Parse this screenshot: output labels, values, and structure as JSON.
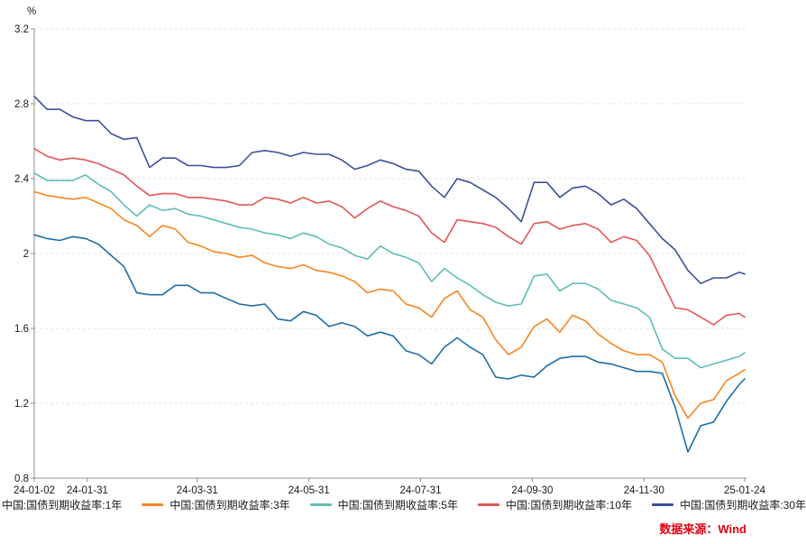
{
  "chart": {
    "unit_label": "%",
    "source": "数据来源：Wind",
    "source_color": "#e60012",
    "axis_color": "#8f8f8f",
    "grid_color": "#e3e3e3",
    "tick_text_color": "#1a1a1a"
  },
  "chart_data": {
    "type": "line",
    "title": "",
    "xlabel": "",
    "ylabel": "%",
    "ylim": [
      0.8,
      3.2
    ],
    "y_ticks": [
      3.2,
      2.8,
      2.4,
      2,
      1.6,
      1.2,
      0.8
    ],
    "grid": "horizontal-dashed",
    "legend_position": "bottom",
    "x_unit": "days since 2024-01-02",
    "x_tick_days": [
      0,
      29,
      89,
      150,
      211,
      272,
      333,
      388
    ],
    "x_tick_labels": [
      "24-01-02",
      "24-01-31",
      "24-03-31",
      "24-05-31",
      "24-07-31",
      "24-09-30",
      "24-11-30",
      "25-01-24"
    ],
    "x_days": [
      0,
      7,
      14,
      21,
      28,
      35,
      42,
      49,
      56,
      63,
      70,
      77,
      84,
      91,
      98,
      105,
      112,
      119,
      126,
      133,
      140,
      147,
      154,
      161,
      168,
      175,
      182,
      189,
      196,
      203,
      210,
      217,
      224,
      231,
      238,
      245,
      252,
      259,
      266,
      273,
      280,
      287,
      294,
      301,
      308,
      315,
      322,
      329,
      336,
      343,
      350,
      357,
      364,
      371,
      378,
      385,
      388
    ],
    "series": [
      {
        "name": "中国:国债到期收益率:1年",
        "color": "#1f6fa8",
        "values": [
          2.1,
          2.08,
          2.07,
          2.09,
          2.08,
          2.05,
          1.99,
          1.93,
          1.79,
          1.78,
          1.78,
          1.83,
          1.83,
          1.79,
          1.79,
          1.76,
          1.73,
          1.72,
          1.73,
          1.65,
          1.64,
          1.69,
          1.67,
          1.61,
          1.63,
          1.61,
          1.56,
          1.58,
          1.56,
          1.48,
          1.46,
          1.41,
          1.5,
          1.55,
          1.5,
          1.46,
          1.34,
          1.33,
          1.35,
          1.34,
          1.4,
          1.44,
          1.45,
          1.45,
          1.42,
          1.41,
          1.39,
          1.37,
          1.37,
          1.36,
          1.18,
          0.94,
          1.08,
          1.1,
          1.21,
          1.3,
          1.33
        ]
      },
      {
        "name": "中国:国债到期收益率:3年",
        "color": "#f6861f",
        "values": [
          2.33,
          2.31,
          2.3,
          2.29,
          2.3,
          2.27,
          2.24,
          2.18,
          2.15,
          2.09,
          2.15,
          2.13,
          2.06,
          2.04,
          2.01,
          2.0,
          1.98,
          1.99,
          1.95,
          1.93,
          1.92,
          1.94,
          1.91,
          1.9,
          1.88,
          1.85,
          1.79,
          1.81,
          1.8,
          1.73,
          1.71,
          1.66,
          1.76,
          1.8,
          1.7,
          1.66,
          1.54,
          1.46,
          1.5,
          1.61,
          1.65,
          1.58,
          1.67,
          1.64,
          1.57,
          1.52,
          1.48,
          1.46,
          1.46,
          1.42,
          1.24,
          1.12,
          1.2,
          1.22,
          1.32,
          1.36,
          1.38
        ]
      },
      {
        "name": "中国:国债到期收益率:5年",
        "color": "#5fbdb9",
        "values": [
          2.43,
          2.39,
          2.39,
          2.39,
          2.42,
          2.37,
          2.33,
          2.26,
          2.2,
          2.26,
          2.23,
          2.24,
          2.21,
          2.2,
          2.18,
          2.16,
          2.14,
          2.13,
          2.11,
          2.1,
          2.08,
          2.11,
          2.09,
          2.05,
          2.03,
          1.99,
          1.97,
          2.04,
          2.0,
          1.98,
          1.95,
          1.85,
          1.92,
          1.87,
          1.83,
          1.78,
          1.74,
          1.72,
          1.73,
          1.88,
          1.89,
          1.8,
          1.84,
          1.84,
          1.81,
          1.75,
          1.73,
          1.71,
          1.66,
          1.49,
          1.44,
          1.44,
          1.39,
          1.41,
          1.43,
          1.45,
          1.47
        ]
      },
      {
        "name": "中国:国债到期收益率:10年",
        "color": "#e4555a",
        "values": [
          2.56,
          2.52,
          2.5,
          2.51,
          2.5,
          2.48,
          2.45,
          2.42,
          2.36,
          2.31,
          2.32,
          2.32,
          2.3,
          2.3,
          2.29,
          2.28,
          2.26,
          2.26,
          2.3,
          2.29,
          2.27,
          2.3,
          2.27,
          2.28,
          2.25,
          2.19,
          2.24,
          2.28,
          2.25,
          2.23,
          2.2,
          2.11,
          2.06,
          2.18,
          2.17,
          2.16,
          2.14,
          2.09,
          2.05,
          2.16,
          2.17,
          2.13,
          2.15,
          2.16,
          2.13,
          2.06,
          2.09,
          2.07,
          1.99,
          1.85,
          1.71,
          1.7,
          1.66,
          1.62,
          1.67,
          1.68,
          1.66
        ]
      },
      {
        "name": "中国:国债到期收益率:30年",
        "color": "#3c4f9c",
        "values": [
          2.84,
          2.77,
          2.77,
          2.73,
          2.71,
          2.71,
          2.64,
          2.61,
          2.62,
          2.46,
          2.51,
          2.51,
          2.47,
          2.47,
          2.46,
          2.46,
          2.47,
          2.54,
          2.55,
          2.54,
          2.52,
          2.54,
          2.53,
          2.53,
          2.5,
          2.45,
          2.47,
          2.5,
          2.48,
          2.45,
          2.44,
          2.36,
          2.3,
          2.4,
          2.38,
          2.34,
          2.3,
          2.24,
          2.17,
          2.38,
          2.38,
          2.3,
          2.35,
          2.36,
          2.32,
          2.26,
          2.29,
          2.24,
          2.16,
          2.08,
          2.02,
          1.91,
          1.84,
          1.87,
          1.87,
          1.9,
          1.89
        ]
      }
    ]
  }
}
